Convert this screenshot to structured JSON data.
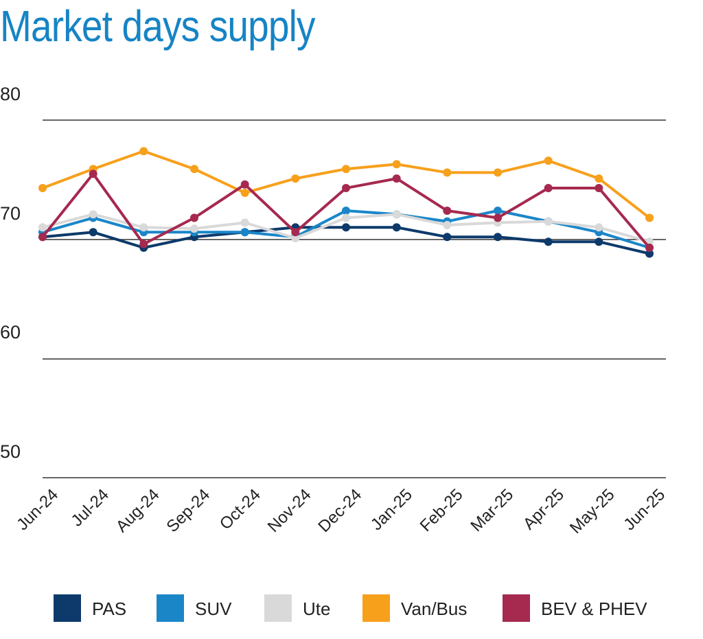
{
  "chart_data": {
    "type": "line",
    "title": "Market days supply",
    "xlabel": "",
    "ylabel": "",
    "ylim": [
      48,
      80
    ],
    "yticks": [
      80,
      70,
      60,
      50
    ],
    "grid": true,
    "legend_position": "bottom",
    "categories": [
      "Jun-24",
      "Jul-24",
      "Aug-24",
      "Sep-24",
      "Oct-24",
      "Nov-24",
      "Dec-24",
      "Jan-25",
      "Feb-25",
      "Mar-25",
      "Apr-25",
      "May-25",
      "Jun-25"
    ],
    "series": [
      {
        "name": "PAS",
        "color": "#0d3a6b",
        "values": [
          68.2,
          68.6,
          67.3,
          68.2,
          68.6,
          69.0,
          69.0,
          69.0,
          68.2,
          68.2,
          67.8,
          67.8,
          66.8
        ]
      },
      {
        "name": "SUV",
        "color": "#1a86c8",
        "values": [
          68.6,
          69.8,
          68.6,
          68.6,
          68.6,
          68.2,
          70.4,
          70.1,
          69.5,
          70.4,
          69.5,
          68.6,
          67.3
        ]
      },
      {
        "name": "Ute",
        "color": "#d9d9d9",
        "values": [
          69.0,
          70.1,
          69.0,
          68.9,
          69.4,
          68.1,
          69.8,
          70.1,
          69.2,
          69.4,
          69.5,
          69.0,
          67.8
        ]
      },
      {
        "name": "Van/Bus",
        "color": "#f7a01c",
        "values": [
          72.3,
          73.9,
          75.4,
          73.9,
          71.9,
          73.1,
          73.9,
          74.3,
          73.6,
          73.6,
          74.6,
          73.1,
          69.8
        ]
      },
      {
        "name": "BEV & PHEV",
        "color": "#a6294f",
        "values": [
          68.2,
          73.5,
          67.6,
          69.8,
          72.6,
          68.6,
          72.3,
          73.1,
          70.4,
          69.8,
          72.3,
          72.3,
          67.3
        ]
      }
    ]
  },
  "style": {
    "title_color": "#1684c5",
    "axis_line_color": "#333333"
  }
}
